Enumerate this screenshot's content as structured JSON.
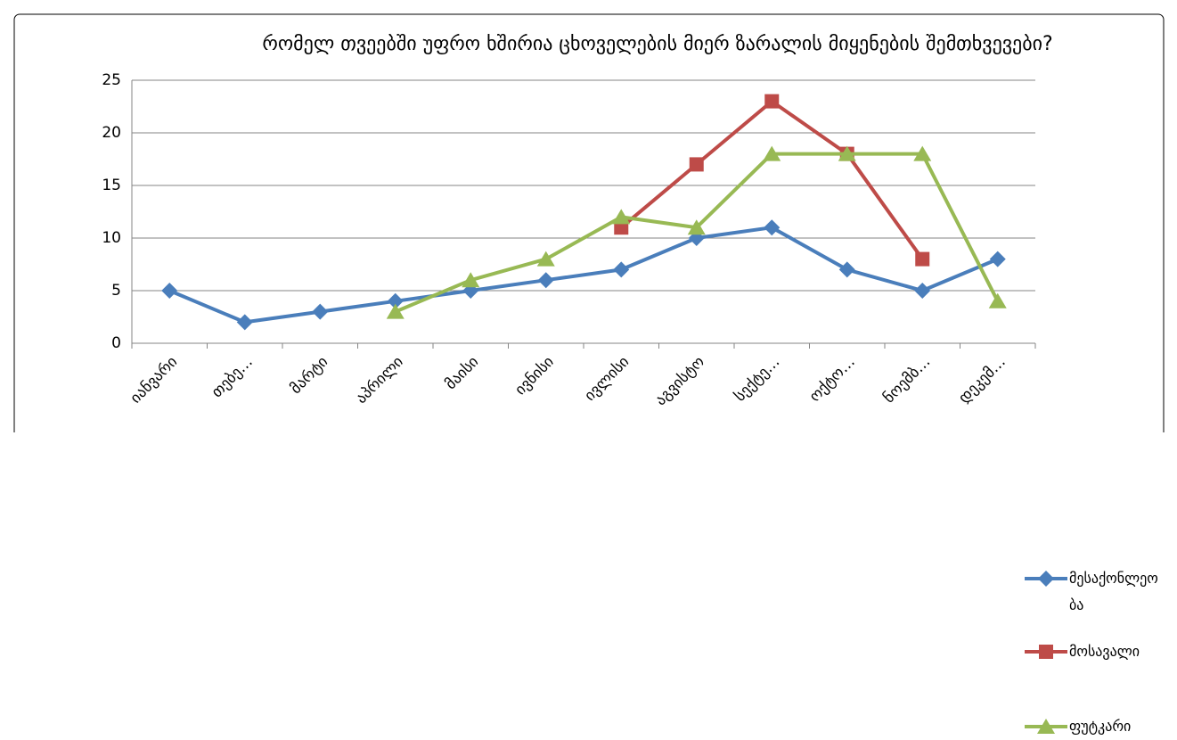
{
  "chart_data": {
    "type": "line",
    "title": "რომელ თვეებში უფრო ხშირია ცხოველების მიერ ზარალის მიყენების შემთხვევები?",
    "categories": [
      "იანვარი",
      "თებე…",
      "მარტი",
      "აპრილი",
      "მაისი",
      "ივნისი",
      "ივლისი",
      "აგვისტო",
      "სექტე…",
      "ოქტო…",
      "ნოემბ…",
      "დეკემ…"
    ],
    "series": [
      {
        "name": "მესაქონლეობა",
        "color": "#4a7ebb",
        "marker": "diamond",
        "values": [
          5,
          2,
          3,
          4,
          5,
          6,
          7,
          10,
          11,
          7,
          5,
          8
        ]
      },
      {
        "name": "მოსავალი",
        "color": "#be4b48",
        "marker": "square",
        "values": [
          null,
          null,
          null,
          null,
          null,
          null,
          11,
          17,
          23,
          18,
          8,
          null
        ]
      },
      {
        "name": "ფუტკარი",
        "color": "#98b954",
        "marker": "triangle",
        "values": [
          null,
          null,
          null,
          3,
          6,
          8,
          12,
          11,
          18,
          18,
          18,
          4
        ]
      }
    ],
    "ylim": [
      0,
      25
    ],
    "yticks": [
      0,
      5,
      10,
      15,
      20,
      25
    ],
    "grid": true,
    "legend": "right"
  }
}
